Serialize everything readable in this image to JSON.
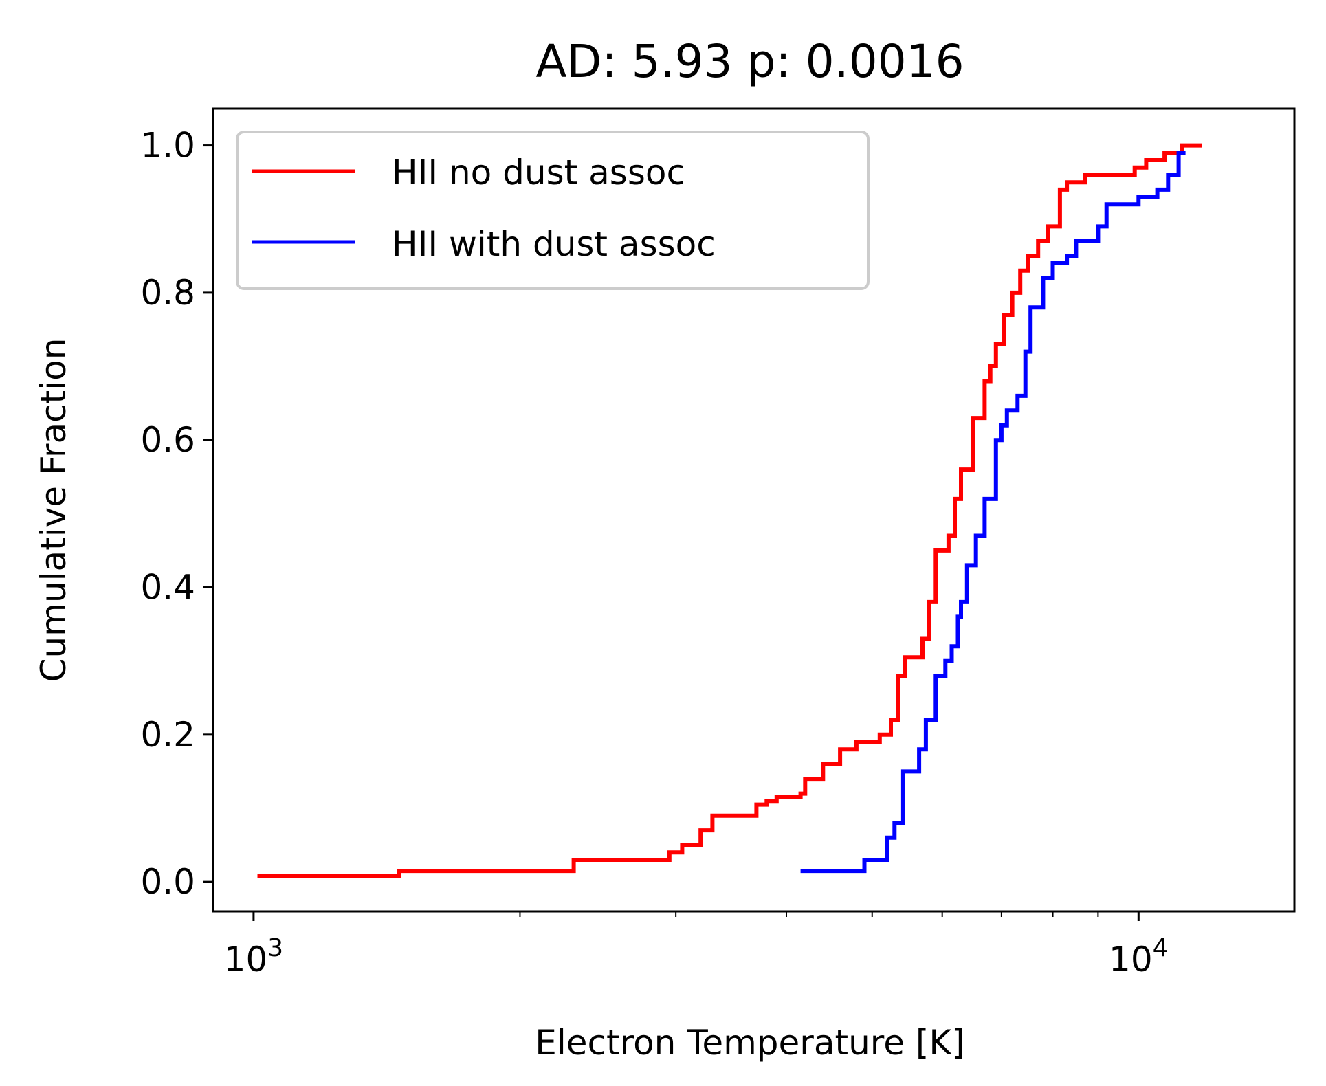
{
  "chart_data": {
    "type": "line",
    "step": true,
    "title": "AD: 5.93 p: 0.0016",
    "xlabel": "Electron Temperature [K]",
    "ylabel": "Cumulative Fraction",
    "xscale": "log",
    "xlim": [
      900,
      15000
    ],
    "ylim": [
      -0.04,
      1.05
    ],
    "xticks": [
      {
        "value": 1000,
        "base": "10",
        "exp": "3"
      },
      {
        "value": 10000,
        "base": "10",
        "exp": "4"
      }
    ],
    "yticks": [
      {
        "value": 0.0,
        "label": "0.0"
      },
      {
        "value": 0.2,
        "label": "0.2"
      },
      {
        "value": 0.4,
        "label": "0.4"
      },
      {
        "value": 0.6,
        "label": "0.6"
      },
      {
        "value": 0.8,
        "label": "0.8"
      },
      {
        "value": 1.0,
        "label": "1.0"
      }
    ],
    "grid": false,
    "legend_position": "top-left",
    "series": [
      {
        "name": "HII no dust assoc",
        "color": "#ff0000",
        "x": [
          1010,
          1450,
          1460,
          2280,
          2300,
          2880,
          2950,
          3050,
          3200,
          3300,
          3350,
          3480,
          3700,
          3800,
          3900,
          4150,
          4200,
          4400,
          4600,
          4800,
          5100,
          5250,
          5350,
          5450,
          5700,
          5800,
          5900,
          6000,
          6100,
          6200,
          6300,
          6500,
          6700,
          6800,
          6900,
          7050,
          7200,
          7350,
          7500,
          7700,
          7900,
          8150,
          8300,
          8700,
          9000,
          9900,
          10200,
          10700,
          11200,
          11700
        ],
        "y": [
          0.008,
          0.008,
          0.015,
          0.015,
          0.03,
          0.03,
          0.04,
          0.05,
          0.07,
          0.09,
          0.09,
          0.09,
          0.105,
          0.11,
          0.115,
          0.12,
          0.14,
          0.16,
          0.18,
          0.19,
          0.2,
          0.22,
          0.28,
          0.305,
          0.33,
          0.38,
          0.45,
          0.45,
          0.47,
          0.52,
          0.56,
          0.63,
          0.68,
          0.7,
          0.73,
          0.77,
          0.8,
          0.83,
          0.85,
          0.87,
          0.89,
          0.94,
          0.95,
          0.96,
          0.96,
          0.97,
          0.98,
          0.99,
          1.0,
          1.0
        ],
        "end_x": 11800
      },
      {
        "name": "HII with dust assoc",
        "color": "#0000ff",
        "x": [
          4150,
          4900,
          5200,
          5300,
          5420,
          5650,
          5750,
          5900,
          6050,
          6150,
          6250,
          6300,
          6400,
          6550,
          6600,
          6700,
          6900,
          7000,
          7100,
          7300,
          7450,
          7550,
          7800,
          8000,
          8300,
          8500,
          9000,
          9200,
          9500,
          10000,
          10500,
          10800,
          11100
        ],
        "y": [
          0.015,
          0.03,
          0.06,
          0.08,
          0.15,
          0.18,
          0.22,
          0.28,
          0.3,
          0.32,
          0.36,
          0.38,
          0.43,
          0.47,
          0.47,
          0.52,
          0.6,
          0.62,
          0.64,
          0.66,
          0.72,
          0.78,
          0.82,
          0.84,
          0.85,
          0.87,
          0.89,
          0.92,
          0.92,
          0.93,
          0.94,
          0.96,
          0.99
        ],
        "end_x": 11300
      }
    ]
  }
}
